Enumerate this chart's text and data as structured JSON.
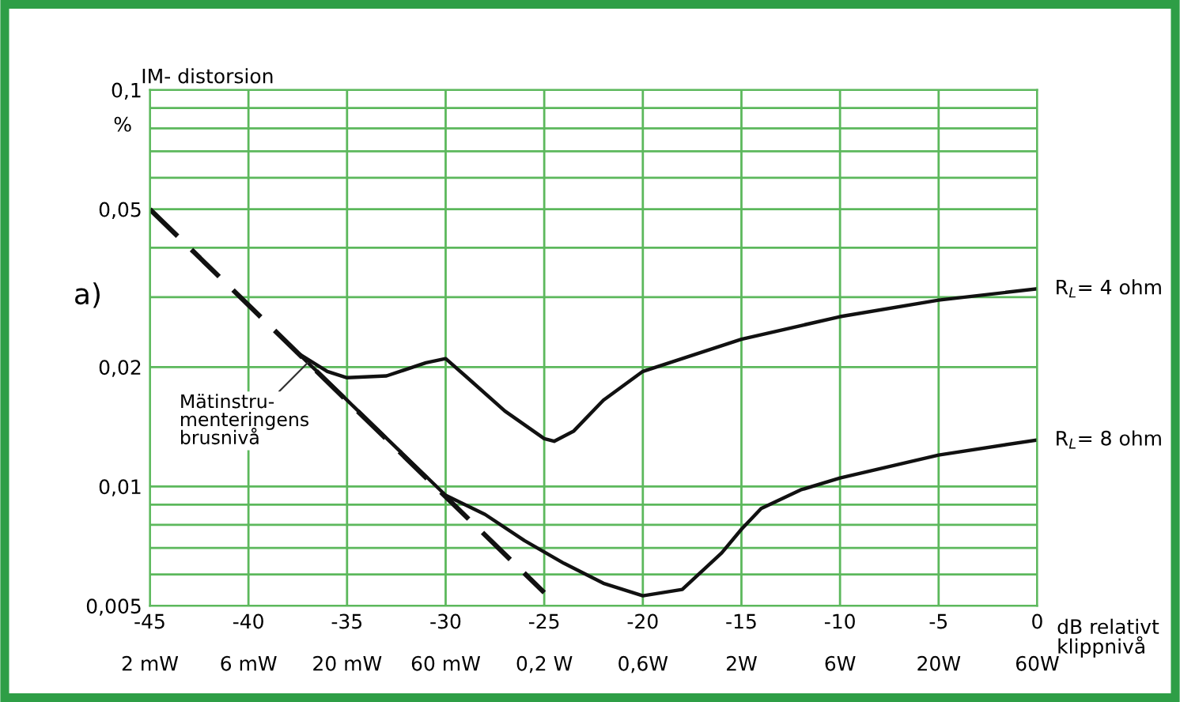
{
  "chart_data": {
    "type": "line",
    "ylabel": "IM- distorsion",
    "xlabel": "dB relativt\nklippnivå",
    "log": "y",
    "grid": true,
    "line_style": "solid",
    "marker": "none",
    "legend": false,
    "xlim": [
      -45,
      0
    ],
    "xticks": [
      -45,
      -40,
      -35,
      -30,
      -25,
      -20,
      -15,
      -10,
      -5,
      0
    ],
    "ylim": [
      0.005,
      0.1
    ],
    "yticks": [
      {
        "value": 0.005,
        "label": "0,005"
      },
      {
        "value": 0.006,
        "label": null
      },
      {
        "value": 0.007,
        "label": null
      },
      {
        "value": 0.008,
        "label": null
      },
      {
        "value": 0.009,
        "label": null
      },
      {
        "value": 0.01,
        "label": "0,01"
      },
      {
        "value": 0.02,
        "label": "0,02"
      },
      {
        "value": 0.03,
        "label": null
      },
      {
        "value": 0.04,
        "label": null
      },
      {
        "value": 0.05,
        "label": "0,05"
      },
      {
        "value": 0.06,
        "label": null
      },
      {
        "value": 0.07,
        "label": null
      },
      {
        "value": 0.08,
        "label": null
      },
      {
        "value": 0.09,
        "label": null
      },
      {
        "value": 0.1,
        "label": "0,1"
      }
    ],
    "series": [
      {
        "name": "R$_{L}$= 4 ohm",
        "color": "#111111",
        "x": [
          -37.5,
          -36,
          -35,
          -33,
          -31,
          -30,
          -29,
          -27,
          -25,
          -24.5,
          -23.5,
          -22,
          -20,
          -15,
          -10,
          -5,
          0
        ],
        "values": [
          0.0217,
          0.0195,
          0.0188,
          0.019,
          0.0205,
          0.021,
          0.019,
          0.0155,
          0.0132,
          0.013,
          0.0138,
          0.0165,
          0.0195,
          0.0235,
          0.0268,
          0.0295,
          0.0315
        ]
      },
      {
        "name": "R$_{L}$= 8 ohm",
        "color": "#111111",
        "x": [
          -37.5,
          -35,
          -30,
          -28,
          -26,
          -24,
          -22,
          -20,
          -18,
          -16,
          -15,
          -14,
          -12,
          -10,
          -5,
          0
        ],
        "values": [
          0.0217,
          0.0165,
          0.0095,
          0.0085,
          0.0073,
          0.0064,
          0.0057,
          0.0053,
          0.0055,
          0.0068,
          0.0078,
          0.0088,
          0.0098,
          0.0105,
          0.012,
          0.0131
        ]
      },
      {
        "color": "#111111",
        "line_style": "dashed",
        "x": [
          -45,
          -25
        ],
        "values": [
          0.05,
          0.0054
        ]
      }
    ],
    "annotations": [
      "%",
      "a)",
      "2 mW",
      "6 mW",
      "20 mW",
      "60 mW",
      "0,2 W",
      "0,6W",
      "2W",
      "6W",
      "20W",
      "60W",
      {
        "text": "Mätinstru-\nmenteringens\nbrusnivå",
        "x": -37,
        "y": 0.0205
      }
    ]
  }
}
